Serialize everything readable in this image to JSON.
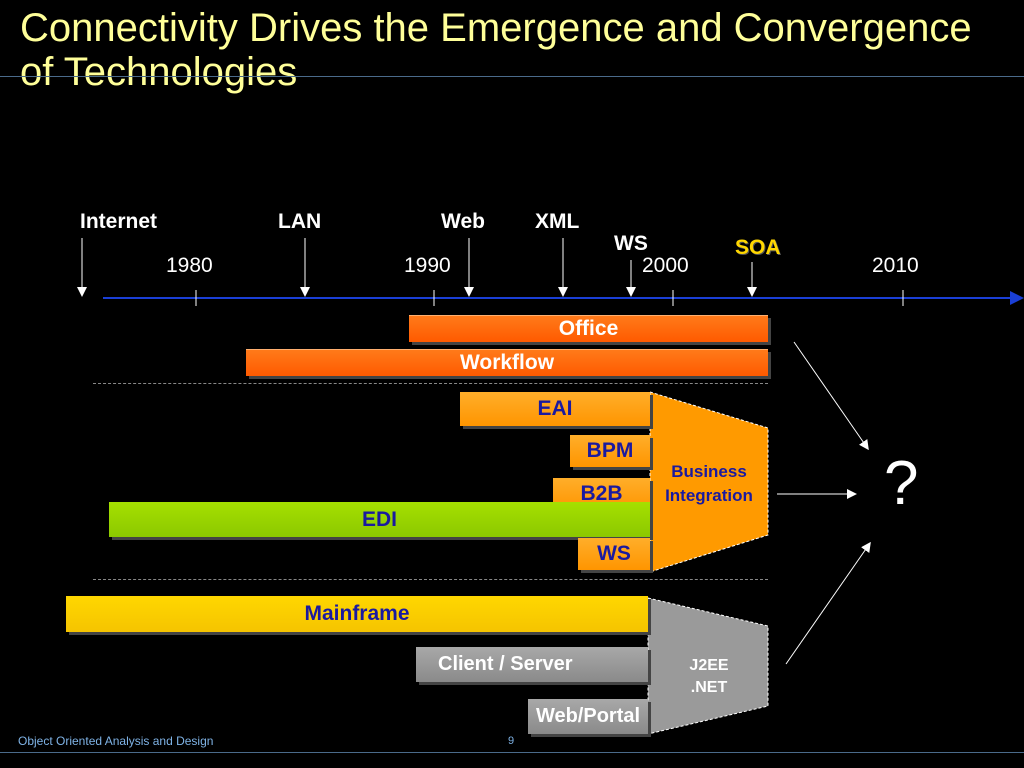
{
  "title": "Connectivity Drives the Emergence and Convergence of Technologies",
  "timeline": {
    "events": [
      "Internet",
      "LAN",
      "Web",
      "XML",
      "WS",
      "SOA"
    ],
    "years": [
      "1980",
      "1990",
      "2000",
      "2010"
    ]
  },
  "bars": {
    "office": "Office",
    "workflow": "Workflow",
    "eai": "EAI",
    "bpm": "BPM",
    "b2b": "B2B",
    "edi": "EDI",
    "ws": "WS",
    "mainframe": "Mainframe",
    "client_server": "Client / Server",
    "web_portal": "Web/Portal"
  },
  "groups": {
    "business_integration": [
      "Business",
      "Integration"
    ],
    "platforms": [
      "J2EE",
      ".NET"
    ]
  },
  "outcome": "?",
  "footer": {
    "course": "Object Oriented Analysis and Design",
    "page": "9"
  },
  "colors": {
    "title": "#ffff99",
    "soa": "#ffd700",
    "timeline_axis": "#1a3fd6",
    "bar_text": "#1a1aa0"
  }
}
